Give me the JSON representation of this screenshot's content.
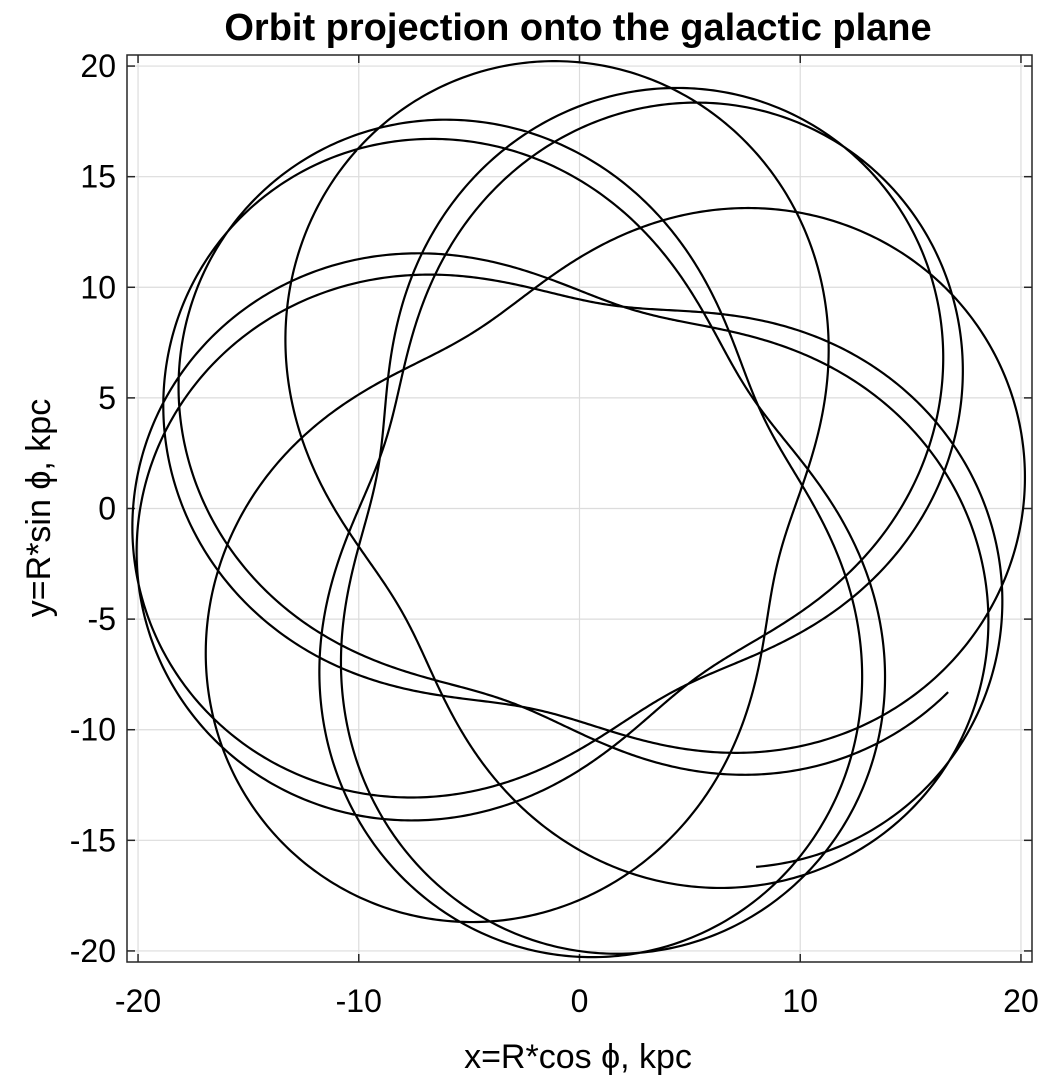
{
  "chart_data": {
    "type": "line",
    "title": "Orbit projection onto the galactic plane",
    "xlabel": "x=R*cos ϕ, kpc",
    "ylabel": "y=R*sin ϕ, kpc",
    "xlim": [
      -20.5,
      20.5
    ],
    "ylim": [
      -20.5,
      20.5
    ],
    "xticks": [
      -20,
      -10,
      0,
      10,
      20
    ],
    "yticks": [
      -20,
      -15,
      -10,
      -5,
      0,
      5,
      10,
      15,
      20
    ],
    "xtick_labels": [
      "-20",
      "-10",
      "0",
      "10",
      "20"
    ],
    "ytick_labels": [
      "-20",
      "-15",
      "-10",
      "-5",
      "0",
      "5",
      "10",
      "15",
      "20"
    ],
    "grid": true,
    "line_color": "#000000",
    "series": [
      {
        "description_points": "rosette orbit with radius oscillating between pericentre and apocentre",
        "r_min": 9.3,
        "r_max": 20.3,
        "radial_periods": 13,
        "azimuthal_turns": 8.6,
        "start_point": [
          8.0,
          -16.2
        ],
        "end_point": [
          16.7,
          -8.3
        ]
      }
    ]
  }
}
